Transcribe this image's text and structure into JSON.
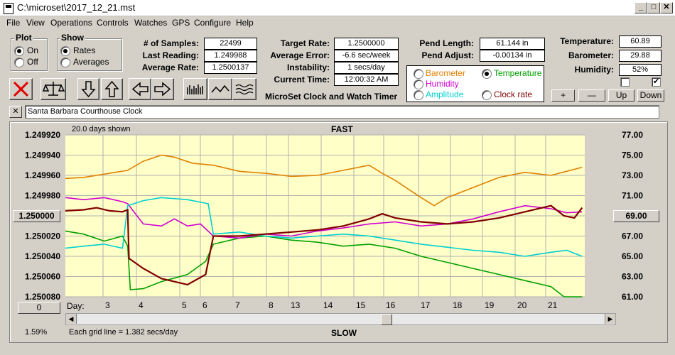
{
  "window": {
    "title": "C:\\microset\\2017_12_21.mst"
  },
  "menu": [
    "File",
    "View",
    "Operations",
    "Controls",
    "Watches",
    "GPS",
    "Configure",
    "Help"
  ],
  "plot_group": {
    "label": "Plot",
    "options": [
      "On",
      "Off"
    ],
    "selected": "On"
  },
  "show_group": {
    "label": "Show",
    "options": [
      "Rates",
      "Averages"
    ],
    "selected": "Rates"
  },
  "stats": {
    "samples_label": "# of Samples:",
    "samples": "22499",
    "last_label": "Last Reading:",
    "last": "1.249988",
    "avg_label": "Average Rate:",
    "avg": "1.2500137"
  },
  "timing": {
    "target_label": "Target Rate:",
    "target": "1.2500000",
    "error_label": "Average Error:",
    "error": "-6.6 sec/week",
    "instab_label": "Instability:",
    "instab": "1 secs/day",
    "time_label": "Current Time:",
    "time": "12:00:32 AM",
    "caption": "MicroSet Clock and Watch Timer"
  },
  "pendulum": {
    "length_label": "Pend Length:",
    "length": "61.144 in",
    "adjust_label": "Pend Adjust:",
    "adjust": "-0.00134 in"
  },
  "series_select": {
    "barometer": "Barometer",
    "temperature": "Temperature",
    "humidity": "Humidity",
    "amplitude": "Amplitude",
    "clockrate": "Clock rate",
    "selected": "Temperature",
    "colors": {
      "barometer": "#e08000",
      "temperature": "#00a000",
      "humidity": "#d000d0",
      "amplitude": "#00d0d0",
      "clockrate": "#800000"
    }
  },
  "environment": {
    "temp_label": "Temperature:",
    "temp": "60.89",
    "baro_label": "Barometer:",
    "baro": "29.88",
    "hum_label": "Humidity:",
    "hum": "52%"
  },
  "scale_buttons": {
    "plus": "+",
    "minus": "—",
    "up": "Up",
    "down": "Down"
  },
  "watch": {
    "clear": "✕",
    "name": "Santa Barbara Courthouse Clock"
  },
  "graph": {
    "days_shown": "20.0 days shown",
    "fast": "FAST",
    "slow": "SLOW",
    "grid_note": "Each grid line = 1.382 secs/day",
    "left_button": "1.250000",
    "right_button": "69.00",
    "zero_button": "0",
    "percent": "1.59%",
    "day_label": "Day:"
  },
  "chart_data": {
    "type": "line",
    "left_axis": [
      "1.249920",
      "1.249940",
      "1.249960",
      "1.249980",
      "1.250000",
      "1.250020",
      "1.250040",
      "1.250060",
      "1.250080"
    ],
    "right_axis": [
      "77.00",
      "75.00",
      "73.00",
      "71.00",
      "69.00",
      "67.00",
      "65.00",
      "63.00",
      "61.00"
    ],
    "days": [
      "3",
      "4",
      "5",
      "6",
      "7",
      "8",
      "13",
      "14",
      "15",
      "16",
      "17",
      "18",
      "19",
      "20",
      "21"
    ],
    "xlim": [
      2.3,
      22.3
    ],
    "series": [
      {
        "name": "Barometer",
        "color": "#e08000",
        "x": [
          2.3,
          3,
          4,
          4.7,
          5.3,
          6,
          6.5,
          7.2,
          8,
          9,
          10,
          11,
          12,
          13,
          14,
          14.5,
          15,
          16,
          16.5,
          17,
          18,
          19,
          20,
          21,
          21.6,
          22.2
        ],
        "y": [
          1.249963,
          1.249962,
          1.249958,
          1.249955,
          1.249946,
          1.24994,
          1.249942,
          1.249948,
          1.24995,
          1.249956,
          1.249958,
          1.249961,
          1.24996,
          1.249955,
          1.24995,
          1.249958,
          1.249965,
          1.249982,
          1.24999,
          1.249982,
          1.249972,
          1.249962,
          1.249957,
          1.24996,
          1.249956,
          1.249952
        ]
      },
      {
        "name": "Temperature",
        "color": "#00a000",
        "x": [
          2.3,
          3,
          3.8,
          4.5,
          4.7,
          4.8,
          5.3,
          6,
          7,
          7.7,
          8,
          9,
          10,
          11,
          12,
          13,
          14,
          15,
          16,
          17,
          18,
          19,
          20,
          21,
          21.5,
          22.2
        ],
        "y": [
          1.250015,
          1.250018,
          1.250025,
          1.25002,
          1.25003,
          1.250073,
          1.250072,
          1.250065,
          1.250058,
          1.250045,
          1.250028,
          1.250022,
          1.25002,
          1.250024,
          1.250026,
          1.25003,
          1.250028,
          1.250032,
          1.25004,
          1.250046,
          1.250052,
          1.250058,
          1.250064,
          1.25007,
          1.25008,
          1.25008
        ]
      },
      {
        "name": "Humidity",
        "color": "#d000d0",
        "x": [
          2.3,
          3,
          3.8,
          4.5,
          4.7,
          5.3,
          6,
          6.5,
          7,
          7.5,
          8,
          9,
          10,
          11,
          12,
          13,
          14,
          15,
          16,
          17,
          18,
          19,
          20,
          21,
          21.6,
          22.2
        ],
        "y": [
          1.249982,
          1.249984,
          1.249982,
          1.249986,
          1.249988,
          1.250008,
          1.25001,
          1.250003,
          1.25001,
          1.250008,
          1.25002,
          1.250022,
          1.250018,
          1.25002,
          1.250015,
          1.250012,
          1.250008,
          1.250006,
          1.25001,
          1.250008,
          1.250003,
          1.249996,
          1.24999,
          1.249993,
          1.249997,
          1.249996
        ]
      },
      {
        "name": "Amplitude",
        "color": "#00d0d0",
        "x": [
          2.3,
          3,
          3.8,
          4.5,
          4.7,
          5.3,
          6,
          7,
          7.8,
          8,
          9,
          10,
          11,
          12,
          13,
          14,
          15,
          16,
          17,
          18,
          19,
          20,
          21,
          21.6,
          22.2
        ],
        "y": [
          1.250032,
          1.25003,
          1.250028,
          1.250032,
          1.24999,
          1.249985,
          1.249982,
          1.249984,
          1.249988,
          1.250018,
          1.250016,
          1.25002,
          1.250022,
          1.25002,
          1.250018,
          1.25002,
          1.250024,
          1.250028,
          1.250031,
          1.250034,
          1.250036,
          1.25004,
          1.250036,
          1.250034,
          1.25004
        ]
      },
      {
        "name": "Clock rate",
        "color": "#800000",
        "x": [
          2.3,
          3,
          3.5,
          4,
          4.5,
          4.7,
          4.75,
          5.3,
          6,
          7,
          7.7,
          8,
          9,
          10,
          11,
          12,
          13,
          14,
          14.5,
          15,
          16,
          17,
          18,
          19,
          20,
          21,
          21.5,
          21.9,
          22.2
        ],
        "y": [
          1.249995,
          1.249994,
          1.249992,
          1.249995,
          1.249996,
          1.249994,
          1.250042,
          1.250052,
          1.250062,
          1.250068,
          1.250058,
          1.25002,
          1.25002,
          1.250018,
          1.250016,
          1.250014,
          1.25001,
          1.250003,
          1.249998,
          1.250002,
          1.250006,
          1.250008,
          1.250006,
          1.250002,
          1.249996,
          1.24999,
          1.25,
          1.250002,
          1.249992
        ]
      }
    ]
  }
}
